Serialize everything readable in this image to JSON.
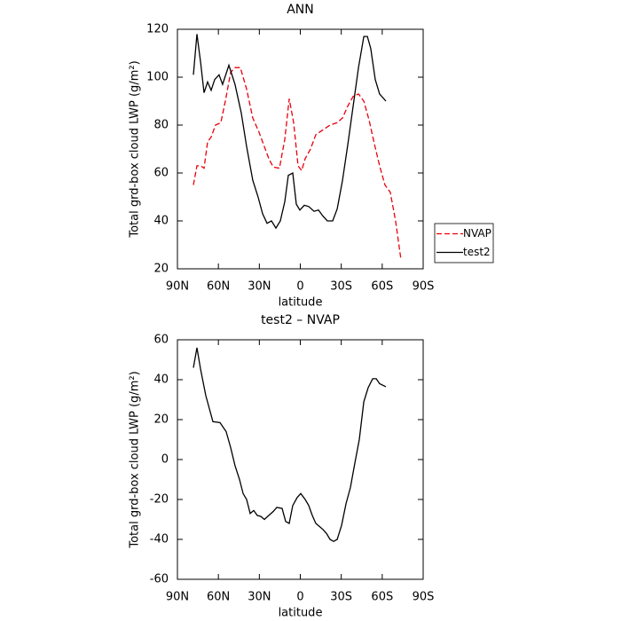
{
  "chart_data": [
    {
      "type": "line",
      "title": "ANN",
      "x_label": "latitude",
      "y_label": "Total grd-box cloud LWP (g/m²)",
      "xlim": [
        90,
        -90
      ],
      "ylim": [
        20,
        120
      ],
      "xticks": [
        {
          "value": 90,
          "label": "90N"
        },
        {
          "value": 60,
          "label": "60N"
        },
        {
          "value": 30,
          "label": "30N"
        },
        0,
        {
          "value": -30,
          "label": "30S"
        },
        {
          "value": -60,
          "label": "60S"
        },
        {
          "value": -90,
          "label": "90S"
        }
      ],
      "yticks": [
        20,
        40,
        60,
        80,
        100,
        120
      ],
      "legend": "right",
      "series": [
        {
          "name": "NVAP",
          "color": "#e8000b",
          "line_style": "dashed",
          "x": [
            78.3,
            75.7,
            73,
            70.5,
            67.9,
            65.3,
            62.1,
            58.2,
            54.9,
            51,
            47.8,
            43.9,
            39.3,
            34.8,
            30.2,
            26.3,
            23.1,
            19.8,
            15.3,
            11.4,
            8.1,
            4.9,
            1.6,
            -1,
            -3.6,
            -7.5,
            -11.4,
            -16.6,
            -21.8,
            -27,
            -30.9,
            -34.8,
            -38.7,
            -42.6,
            -46.5,
            -50.4,
            -54.3,
            -58.1,
            -62,
            -65.9,
            -69.8,
            -73.7
          ],
          "values": [
            55,
            63,
            63,
            62,
            73,
            75,
            80,
            81,
            90,
            102,
            104,
            104,
            95,
            83,
            77,
            71,
            66,
            62.5,
            62,
            74,
            91,
            81,
            63,
            61,
            66,
            70,
            76,
            78,
            80,
            81,
            83,
            88,
            92,
            93,
            90,
            82,
            72,
            63,
            55,
            52,
            40,
            24
          ]
        },
        {
          "name": "test2",
          "color": "#000000",
          "line_style": "solid",
          "x": [
            78.3,
            75.7,
            73,
            70.5,
            67.9,
            65.3,
            62.7,
            59.5,
            56.9,
            52.3,
            47.8,
            43.2,
            39.3,
            34.8,
            30.9,
            27.6,
            24.4,
            21.1,
            17.9,
            14.6,
            11.4,
            8.8,
            5.5,
            2.9,
            0.3,
            -2.9,
            -6.2,
            -10.1,
            -13.3,
            -16.6,
            -19.8,
            -23.7,
            -27,
            -30.9,
            -34.8,
            -38.7,
            -42.6,
            -46.5,
            -49.1,
            -51.6,
            -54.9,
            -58.1,
            -62.7
          ],
          "values": [
            101,
            118,
            106,
            93.5,
            98,
            94.5,
            99,
            101,
            97,
            105,
            97,
            85,
            71,
            57,
            50,
            43,
            39,
            40,
            37,
            40,
            48,
            59,
            60,
            47,
            44.5,
            46.5,
            46,
            44,
            44.5,
            42,
            40,
            40,
            45,
            57,
            72,
            88,
            104,
            117,
            117,
            112,
            99,
            93,
            90
          ]
        }
      ]
    },
    {
      "type": "line",
      "title": "test2 – NVAP",
      "x_label": "latitude",
      "y_label": "Total grd-box cloud LWP (g/m²)",
      "xlim": [
        90,
        -90
      ],
      "ylim": [
        -60,
        60
      ],
      "xticks": [
        {
          "value": 90,
          "label": "90N"
        },
        {
          "value": 60,
          "label": "60N"
        },
        {
          "value": 30,
          "label": "30N"
        },
        0,
        {
          "value": -30,
          "label": "30S"
        },
        {
          "value": -60,
          "label": "60S"
        },
        {
          "value": -90,
          "label": "90S"
        }
      ],
      "yticks": [
        -60,
        -40,
        -20,
        0,
        20,
        40,
        60
      ],
      "series": [
        {
          "color": "#000000",
          "line_style": "solid",
          "x": [
            78.3,
            75.7,
            73,
            69.2,
            64,
            58.8,
            54.3,
            51,
            47.8,
            44.5,
            41.9,
            39.3,
            36.7,
            34.1,
            31.5,
            28.9,
            26.3,
            23.1,
            19.8,
            17.2,
            13.3,
            10.7,
            8.1,
            5.5,
            2.3,
            -0.3,
            -3.6,
            -6.2,
            -8.8,
            -11.4,
            -14,
            -16.6,
            -19.2,
            -21.8,
            -24.4,
            -27,
            -30.2,
            -33.5,
            -36.7,
            -39.9,
            -43.2,
            -46.5,
            -49.7,
            -53,
            -55.6,
            -58.1,
            -62.7
          ],
          "values": [
            46,
            56,
            45,
            32,
            19,
            18.5,
            14,
            6,
            -3,
            -10,
            -17,
            -20,
            -27,
            -25.5,
            -28,
            -28.5,
            -30,
            -28,
            -26,
            -24,
            -24.5,
            -31,
            -32,
            -23,
            -19,
            -17,
            -20,
            -23,
            -28,
            -32,
            -33.5,
            -35,
            -37,
            -40,
            -41,
            -40,
            -33,
            -22,
            -14,
            -2,
            10,
            29,
            36,
            40.5,
            40.5,
            38,
            36.5
          ]
        }
      ]
    }
  ]
}
